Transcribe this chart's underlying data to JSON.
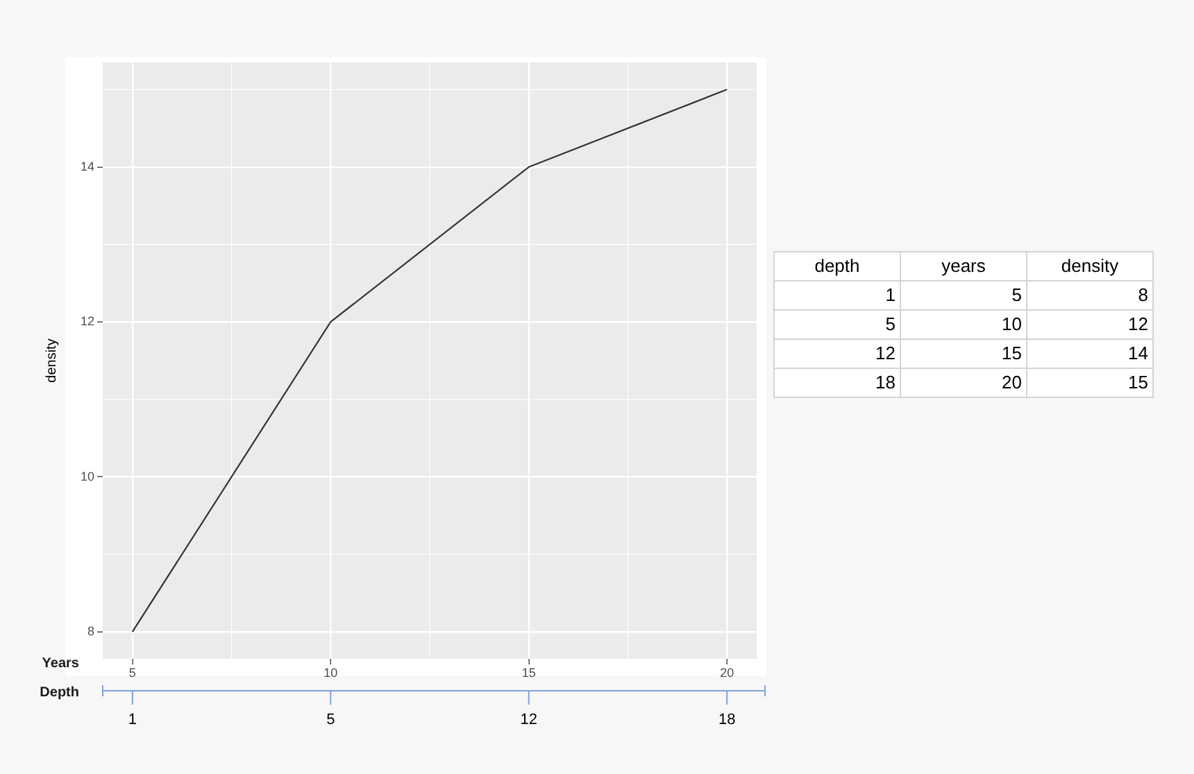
{
  "chart_data": [
    {
      "type": "line",
      "x": [
        5,
        10,
        15,
        20
      ],
      "values": [
        8,
        12,
        14,
        15
      ],
      "color": "#333333",
      "xlabel": "Years",
      "ylabel": "density",
      "xlim": [
        4.25,
        20.75
      ],
      "xticks": [
        5,
        10,
        15,
        20
      ],
      "ylim": [
        7.65,
        15.35
      ],
      "yticks": [
        8,
        10,
        12,
        14
      ],
      "grid": true,
      "annotations": [
        "Depth",
        {
          "text": "1",
          "x": 5
        },
        {
          "text": "5",
          "x": 10
        },
        {
          "text": "12",
          "x": 15
        },
        {
          "text": "18",
          "x": 20
        }
      ]
    },
    {
      "type": "heatmap",
      "categories": [
        "depth",
        "years",
        "density"
      ],
      "y_categories": [
        null,
        null,
        null,
        null
      ],
      "cells": [
        [
          1,
          5,
          8
        ],
        [
          5,
          10,
          12
        ],
        [
          12,
          15,
          14
        ],
        [
          18,
          20,
          15
        ]
      ],
      "data_labels": true
    }
  ]
}
